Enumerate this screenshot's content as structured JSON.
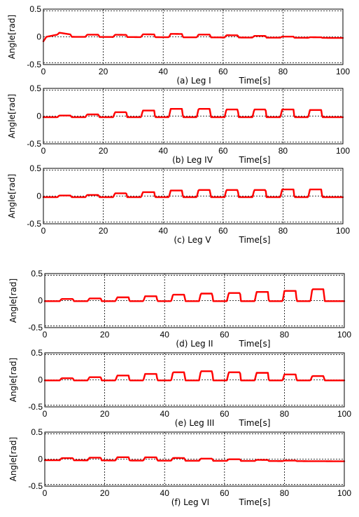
{
  "colors": {
    "trace": "#ff0000",
    "axis": "#000000"
  },
  "chart_data": [
    {
      "type": "line",
      "caption": "(a) Leg I",
      "xlabel": "Time[s]",
      "ylabel": "Angle[rad]",
      "xlim": [
        0,
        100
      ],
      "ylim": [
        -0.5,
        0.5
      ],
      "xticks": [
        "0",
        "20",
        "40",
        "60",
        "80",
        "100"
      ],
      "yticks": [
        "0.5",
        "0",
        "-0.5"
      ],
      "grid": true,
      "pulses": {
        "period": 9.3,
        "first_start": 4.7,
        "width": 4.7,
        "amplitudes": [
          0.04,
          0.04,
          0.04,
          0.05,
          0.06,
          0.05,
          0.04,
          0.03,
          0.02,
          0.01
        ]
      },
      "series": [
        {
          "x": [
            0,
            1,
            4.7,
            9.4,
            100
          ],
          "y": [
            -0.08,
            0.0,
            0.04,
            0.0,
            -0.02
          ]
        }
      ]
    },
    {
      "type": "line",
      "caption": "(b) Leg IV",
      "xlabel": "Time[s]",
      "ylabel": "Angle[rad]",
      "xlim": [
        0,
        100
      ],
      "ylim": [
        -0.5,
        0.5
      ],
      "xticks": [
        "0",
        "20",
        "40",
        "60",
        "80",
        "100"
      ],
      "yticks": [
        "0.5",
        "0",
        "-0.5"
      ],
      "grid": true,
      "pulses": {
        "period": 9.3,
        "first_start": 4.7,
        "width": 4.7,
        "amplitudes": [
          0.03,
          0.05,
          0.09,
          0.12,
          0.15,
          0.15,
          0.14,
          0.14,
          0.14,
          0.13
        ]
      },
      "series": [
        {
          "x": [
            0,
            100
          ],
          "y": [
            -0.02,
            -0.02
          ]
        }
      ]
    },
    {
      "type": "line",
      "caption": "(c) Leg V",
      "xlabel": "Time[s]",
      "ylabel": "Angle[rad]",
      "xlim": [
        0,
        100
      ],
      "ylim": [
        -0.5,
        0.5
      ],
      "xticks": [
        "0",
        "20",
        "40",
        "60",
        "80",
        "100"
      ],
      "yticks": [
        "0.5",
        "0",
        "-0.5"
      ],
      "grid": true,
      "pulses": {
        "period": 9.3,
        "first_start": 4.7,
        "width": 4.7,
        "amplitudes": [
          0.03,
          0.04,
          0.07,
          0.09,
          0.12,
          0.13,
          0.13,
          0.13,
          0.14,
          0.14
        ]
      },
      "series": [
        {
          "x": [
            0,
            100
          ],
          "y": [
            -0.02,
            -0.02
          ]
        }
      ]
    },
    {
      "type": "line",
      "caption": "(d) Leg II",
      "xlabel": "Time[s]",
      "ylabel": "Angle[rad]",
      "xlim": [
        0,
        100
      ],
      "ylim": [
        -0.5,
        0.5
      ],
      "xticks": [
        "0",
        "20",
        "40",
        "60",
        "80",
        "100"
      ],
      "yticks": [
        "0.5",
        "0",
        "-0.5"
      ],
      "grid": true,
      "pulses": {
        "period": 9.3,
        "first_start": 5.0,
        "width": 4.7,
        "amplitudes": [
          0.04,
          0.05,
          0.07,
          0.09,
          0.12,
          0.14,
          0.15,
          0.17,
          0.19,
          0.22
        ]
      },
      "series": [
        {
          "x": [
            0,
            100
          ],
          "y": [
            -0.01,
            -0.01
          ]
        }
      ]
    },
    {
      "type": "line",
      "caption": "(e) Leg III",
      "xlabel": "Time[s]",
      "ylabel": "Angle[rad]",
      "xlim": [
        0,
        100
      ],
      "ylim": [
        -0.5,
        0.5
      ],
      "xticks": [
        "0",
        "20",
        "40",
        "60",
        "80",
        "100"
      ],
      "yticks": [
        "0.5",
        "0",
        "-0.5"
      ],
      "grid": true,
      "pulses": {
        "period": 9.3,
        "first_start": 5.0,
        "width": 4.7,
        "amplitudes": [
          0.04,
          0.06,
          0.09,
          0.12,
          0.15,
          0.17,
          0.15,
          0.14,
          0.11,
          0.08
        ]
      },
      "series": [
        {
          "x": [
            0,
            100
          ],
          "y": [
            -0.01,
            -0.01
          ]
        }
      ]
    },
    {
      "type": "line",
      "caption": "(f) Leg VI",
      "xlabel": "Time[s]",
      "ylabel": "Angle[rad]",
      "xlim": [
        0,
        100
      ],
      "ylim": [
        -0.5,
        0.5
      ],
      "xticks": [
        "0",
        "20",
        "40",
        "60",
        "80",
        "100"
      ],
      "yticks": [
        "0.5",
        "0",
        "-0.5"
      ],
      "grid": true,
      "pulses": {
        "period": 9.3,
        "first_start": 5.0,
        "width": 4.7,
        "amplitudes": [
          0.04,
          0.05,
          0.06,
          0.06,
          0.05,
          0.04,
          0.03,
          0.02,
          0.01,
          0.0
        ]
      },
      "series": [
        {
          "x": [
            0,
            100
          ],
          "y": [
            -0.02,
            -0.04
          ]
        }
      ]
    }
  ]
}
